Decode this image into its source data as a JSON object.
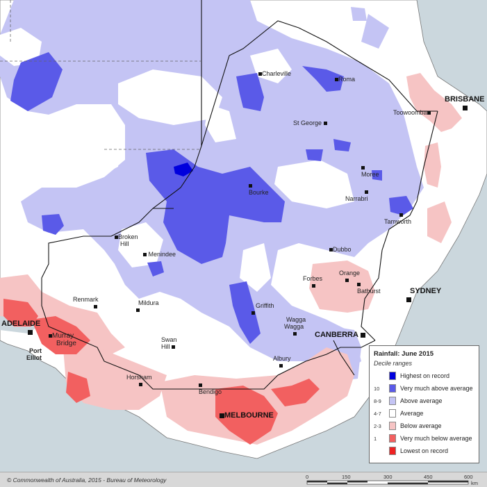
{
  "legend": {
    "title": "Rainfall: June 2015",
    "subtitle": "Decile ranges",
    "items": [
      {
        "decile": "",
        "label": "Highest on record",
        "color": "#0000dd"
      },
      {
        "decile": "10",
        "label": "Very much above average",
        "color": "#5a5ae8"
      },
      {
        "decile": "8-9",
        "label": "Above average",
        "color": "#c4c4f4"
      },
      {
        "decile": "4-7",
        "label": "Average",
        "color": "#ffffff"
      },
      {
        "decile": "2-3",
        "label": "Below average",
        "color": "#f6c4c4"
      },
      {
        "decile": "1",
        "label": "Very much below average",
        "color": "#f26060"
      },
      {
        "decile": "",
        "label": "Lowest on record",
        "color": "#ee2222"
      }
    ]
  },
  "capitals": {
    "brisbane": "BRISBANE",
    "sydney": "SYDNEY",
    "canberra": "CANBERRA",
    "melbourne": "MELBOURNE",
    "adelaide": "ADELAIDE"
  },
  "towns": {
    "charleville": "Charleville",
    "roma": "Roma",
    "toowoomba": "Toowoomba",
    "st_george": "St George",
    "moree": "Moree",
    "bourke": "Bourke",
    "narrabri": "Narrabri",
    "tamworth": "Tamworth",
    "broken_hill_1": "Broken",
    "broken_hill_2": "Hill",
    "menindee": "Menindee",
    "dubbo": "Dubbo",
    "orange": "Orange",
    "forbes": "Forbes",
    "bathurst": "Bathurst",
    "renmark": "Renmark",
    "mildura": "Mildura",
    "griffith": "Griffith",
    "wagga_1": "Wagga",
    "wagga_2": "Wagga",
    "murray_bridge_1": "Murray",
    "murray_bridge_2": "Bridge",
    "port_elliot_1": "Port",
    "port_elliot_2": "Elliot",
    "swan_hill_1": "Swan",
    "swan_hill_2": "Hill",
    "albury": "Albury",
    "horsham": "Horsham",
    "bendigo": "Bendigo"
  },
  "footer": {
    "copyright": "© Commonwealth of Australia, 2015 - Bureau of Meteorology",
    "scale_ticks": [
      "0",
      "150",
      "300",
      "450",
      "600"
    ],
    "scale_unit": "km"
  },
  "colors": {
    "ocean": "#cbd7dd",
    "land": "#ffffff",
    "above": "#c4c4f4",
    "very_above": "#5a5ae8",
    "highest": "#0000dd",
    "below": "#f6c4c4",
    "very_below": "#f26060"
  }
}
